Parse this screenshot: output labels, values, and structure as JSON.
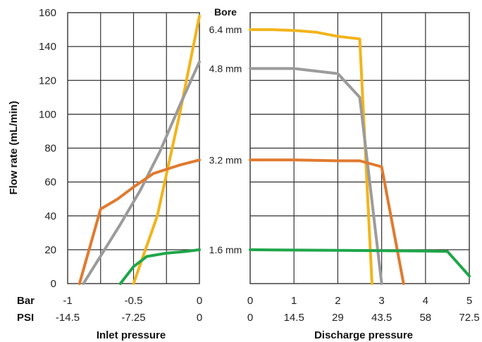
{
  "chart_data": {
    "type": "line",
    "ylabel": "Flow rate (mL/min)",
    "ylim": [
      0,
      160
    ],
    "yticks": [
      "0",
      "20",
      "40",
      "60",
      "80",
      "100",
      "120",
      "140",
      "160"
    ],
    "yticks_values": [
      0,
      20,
      40,
      60,
      80,
      100,
      120,
      140,
      160
    ],
    "legend_title": "Bore",
    "row_labels": {
      "bar": "Bar",
      "psi": "PSI"
    },
    "panels": [
      {
        "id": "inlet",
        "xlabel": "Inlet pressure",
        "xlim": [
          -1,
          0
        ],
        "x_major_values": [
          -1,
          -0.5,
          0
        ],
        "bar_ticks": [
          "-1",
          "-0.5",
          "0"
        ],
        "psi_ticks": [
          "-14.5",
          "-7.25",
          "0"
        ],
        "grid_values": [
          -0.75,
          -0.5,
          -0.25
        ],
        "series": [
          {
            "name": "6.4 mm",
            "color": "#F2B41C",
            "x": [
              -0.5,
              -0.32,
              -0.15,
              0.0
            ],
            "y": [
              0,
              40,
              100,
              158
            ]
          },
          {
            "name": "4.8 mm",
            "color": "#9B9B9B",
            "x": [
              -0.88,
              -0.6,
              -0.45,
              -0.3,
              -0.15,
              0.0
            ],
            "y": [
              0,
              35,
              55,
              78,
              105,
              131
            ]
          },
          {
            "name": "3.2 mm",
            "color": "#E07A2F",
            "x": [
              -0.91,
              -0.75,
              -0.62,
              -0.5,
              -0.35,
              -0.15,
              0.0
            ],
            "y": [
              0,
              44,
              50,
              57,
              65,
              70,
              73
            ]
          },
          {
            "name": "1.6 mm",
            "color": "#1FA64A",
            "x": [
              -0.6,
              -0.5,
              -0.4,
              -0.25,
              -0.1,
              0.0
            ],
            "y": [
              0,
              10,
              16,
              18,
              19,
              20
            ]
          }
        ]
      },
      {
        "id": "discharge",
        "xlabel": "Discharge pressure",
        "xlim": [
          0,
          5
        ],
        "x_major_values": [
          0,
          1,
          2,
          3,
          4,
          5
        ],
        "bar_ticks": [
          "0",
          "1",
          "2",
          "3",
          "4",
          "5"
        ],
        "psi_ticks": [
          "0",
          "14.5",
          "29",
          "43.5",
          "58",
          "72.5"
        ],
        "grid_values": [
          1,
          2,
          3,
          4
        ],
        "series": [
          {
            "name": "6.4 mm",
            "color": "#F2B41C",
            "x": [
              0,
              0.5,
              1.0,
              1.5,
              2.0,
              2.5,
              2.78
            ],
            "y": [
              150,
              150,
              149.5,
              148.5,
              146,
              144.5,
              0
            ]
          },
          {
            "name": "4.8 mm",
            "color": "#9B9B9B",
            "x": [
              0,
              0.5,
              1.0,
              1.5,
              2.0,
              2.5,
              3.0
            ],
            "y": [
              127,
              127,
              127,
              125.5,
              124,
              110,
              0
            ]
          },
          {
            "name": "3.2 mm",
            "color": "#E07A2F",
            "x": [
              0,
              1.0,
              2.0,
              2.5,
              3.0,
              3.5
            ],
            "y": [
              73,
              73,
              72.5,
              72.5,
              69,
              0
            ]
          },
          {
            "name": "1.6 mm",
            "color": "#1FA64A",
            "x": [
              0,
              1.0,
              2.0,
              3.0,
              4.0,
              4.5,
              5.0
            ],
            "y": [
              20,
              19.8,
              19.6,
              19.4,
              19.2,
              19,
              4.5
            ]
          }
        ]
      }
    ],
    "bore_labels": [
      {
        "text": "6.4 mm",
        "y": 150
      },
      {
        "text": "4.8 mm",
        "y": 127
      },
      {
        "text": "3.2 mm",
        "y": 73
      },
      {
        "text": "1.6 mm",
        "y": 20
      }
    ]
  }
}
